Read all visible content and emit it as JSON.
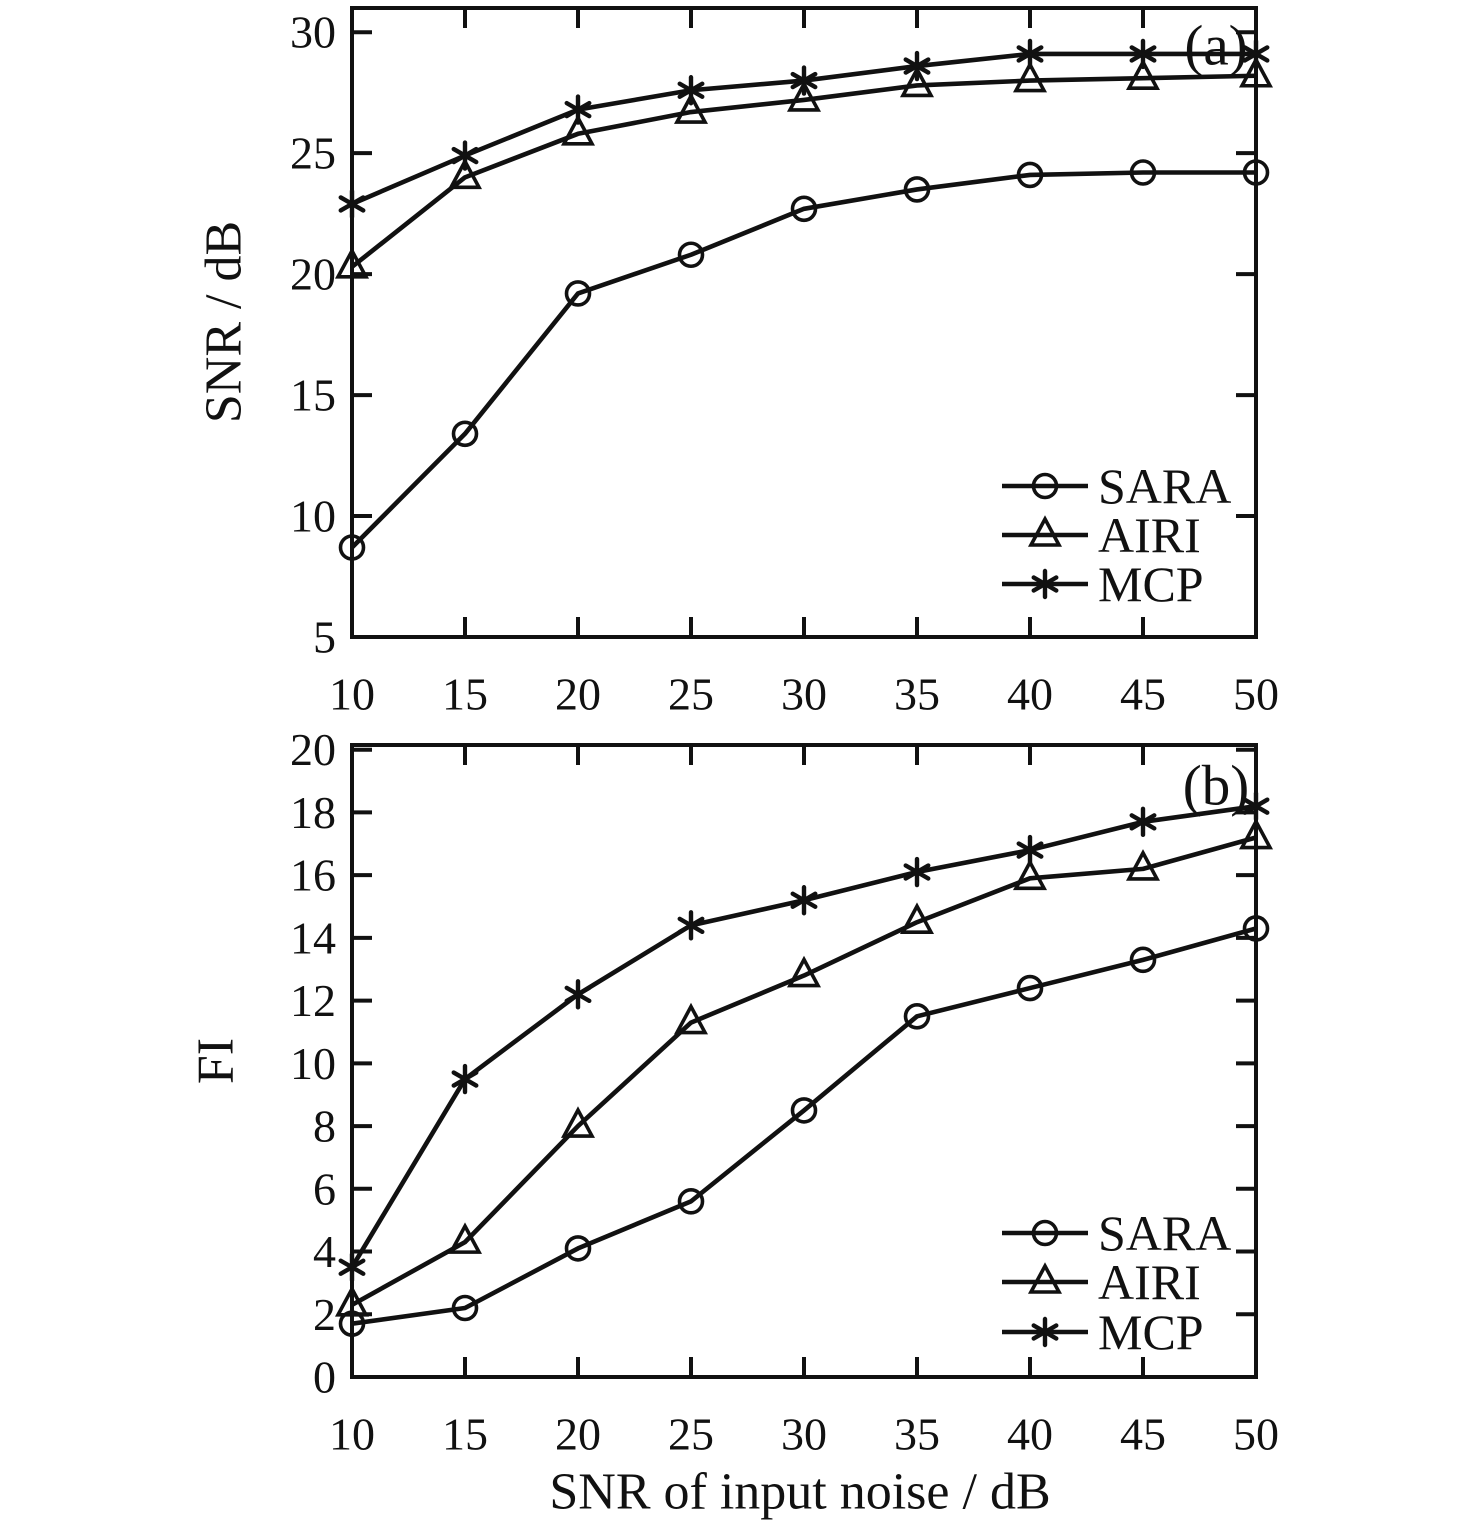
{
  "figure": {
    "background": "#ffffff",
    "ink_color": "#111111",
    "x_axis_title": "SNR of input noise / dB"
  },
  "chart_data": [
    {
      "type": "line",
      "panel_label": "(a)",
      "ylabel": "SNR / dB",
      "xlabel": "SNR of input noise / dB",
      "x": [
        10,
        15,
        20,
        25,
        30,
        35,
        40,
        45,
        50
      ],
      "xtick_labels": [
        "10",
        "15",
        "20",
        "25",
        "30",
        "35",
        "40",
        "45",
        "50"
      ],
      "xlim": [
        10,
        50
      ],
      "ylim": [
        5,
        31
      ],
      "yticks": [
        5,
        10,
        15,
        20,
        25,
        30
      ],
      "ytick_labels": [
        "5",
        "10",
        "15",
        "20",
        "25",
        "30"
      ],
      "grid": false,
      "legend_position": "inside-lower-right",
      "series": [
        {
          "name": "SARA",
          "marker": "circle",
          "values": [
            8.7,
            13.4,
            19.2,
            20.8,
            22.7,
            23.5,
            24.1,
            24.2,
            24.2
          ]
        },
        {
          "name": "AIRI",
          "marker": "triangle",
          "values": [
            20.3,
            24.0,
            25.8,
            26.7,
            27.2,
            27.8,
            28.0,
            28.1,
            28.2
          ]
        },
        {
          "name": "MCP",
          "marker": "asterisk",
          "values": [
            22.9,
            24.9,
            26.8,
            27.6,
            28.0,
            28.6,
            29.1,
            29.1,
            29.1
          ]
        }
      ]
    },
    {
      "type": "line",
      "panel_label": "(b)",
      "ylabel": "FI",
      "xlabel": "SNR of input noise / dB",
      "x": [
        10,
        15,
        20,
        25,
        30,
        35,
        40,
        45,
        50
      ],
      "xtick_labels": [
        "10",
        "15",
        "20",
        "25",
        "30",
        "35",
        "40",
        "45",
        "50"
      ],
      "xlim": [
        10,
        50
      ],
      "ylim": [
        0,
        20.15
      ],
      "yticks": [
        0,
        2,
        4,
        6,
        8,
        10,
        12,
        14,
        16,
        18,
        20
      ],
      "ytick_labels": [
        "0",
        "2",
        "4",
        "6",
        "8",
        "10",
        "12",
        "14",
        "16",
        "18",
        "20"
      ],
      "grid": false,
      "legend_position": "inside-lower-right",
      "series": [
        {
          "name": "SARA",
          "marker": "circle",
          "values": [
            1.7,
            2.2,
            4.1,
            5.6,
            8.5,
            11.5,
            12.4,
            13.3,
            14.3
          ]
        },
        {
          "name": "AIRI",
          "marker": "triangle",
          "values": [
            2.3,
            4.3,
            8.0,
            11.3,
            12.8,
            14.5,
            15.9,
            16.2,
            17.2
          ]
        },
        {
          "name": "MCP",
          "marker": "asterisk",
          "values": [
            3.5,
            9.5,
            12.2,
            14.4,
            15.2,
            16.1,
            16.8,
            17.7,
            18.2
          ]
        }
      ]
    }
  ]
}
